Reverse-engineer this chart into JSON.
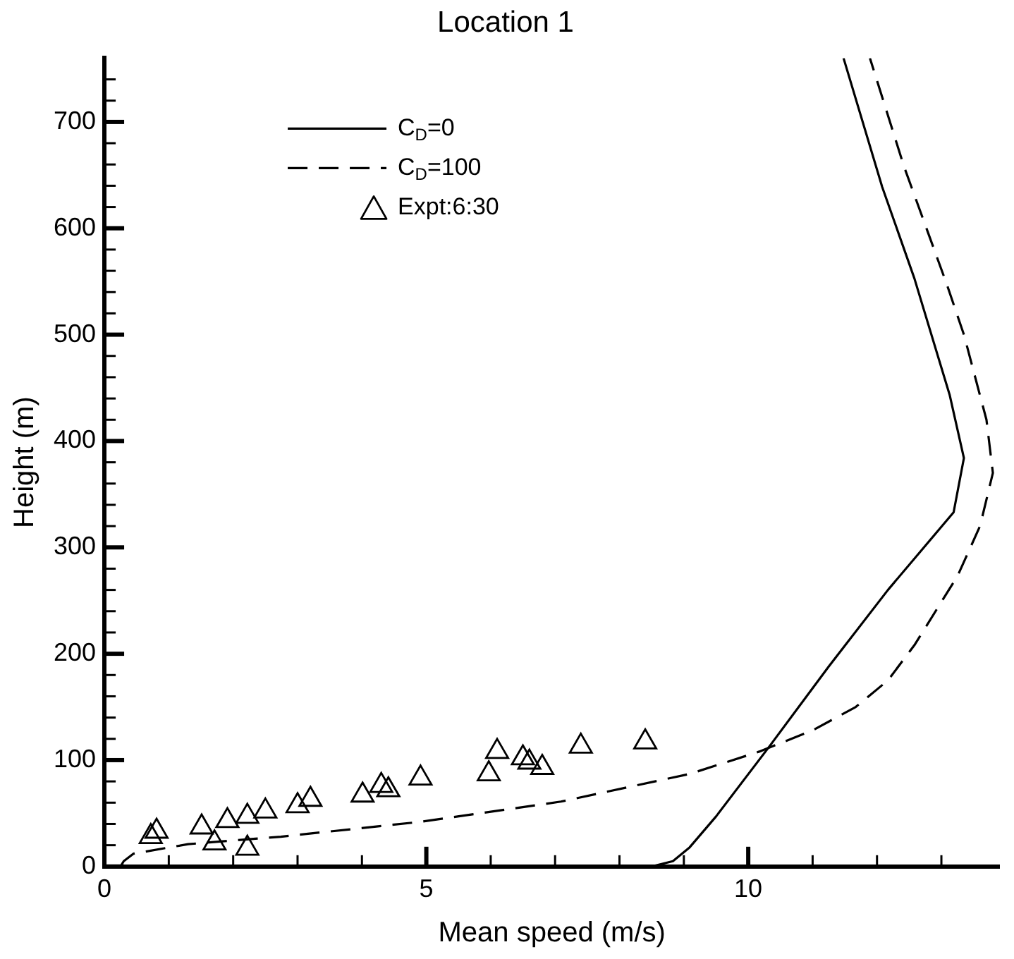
{
  "chart_data": {
    "type": "line",
    "title": "Location 1",
    "xlabel": "Mean speed (m/s)",
    "ylabel": "Height (m)",
    "xlim": [
      0,
      13.9
    ],
    "ylim": [
      0,
      760
    ],
    "xticks": [
      0,
      {
        "value": 1,
        "label": null
      },
      {
        "value": 2,
        "label": null
      },
      {
        "value": 3,
        "label": null
      },
      {
        "value": 4,
        "label": null
      },
      5,
      {
        "value": 6,
        "label": null
      },
      {
        "value": 7,
        "label": null
      },
      {
        "value": 8,
        "label": null
      },
      {
        "value": 9,
        "label": null
      },
      10,
      {
        "value": 11,
        "label": null
      },
      {
        "value": 12,
        "label": null
      },
      {
        "value": 13,
        "label": null
      }
    ],
    "yticks": [
      0,
      {
        "value": 20,
        "label": null
      },
      {
        "value": 40,
        "label": null
      },
      {
        "value": 60,
        "label": null
      },
      {
        "value": 80,
        "label": null
      },
      100,
      {
        "value": 120,
        "label": null
      },
      {
        "value": 140,
        "label": null
      },
      {
        "value": 160,
        "label": null
      },
      {
        "value": 180,
        "label": null
      },
      200,
      {
        "value": 220,
        "label": null
      },
      {
        "value": 240,
        "label": null
      },
      {
        "value": 260,
        "label": null
      },
      {
        "value": 280,
        "label": null
      },
      300,
      {
        "value": 320,
        "label": null
      },
      {
        "value": 340,
        "label": null
      },
      {
        "value": 360,
        "label": null
      },
      {
        "value": 380,
        "label": null
      },
      400,
      {
        "value": 420,
        "label": null
      },
      {
        "value": 440,
        "label": null
      },
      {
        "value": 460,
        "label": null
      },
      {
        "value": 480,
        "label": null
      },
      500,
      {
        "value": 520,
        "label": null
      },
      {
        "value": 540,
        "label": null
      },
      {
        "value": 560,
        "label": null
      },
      {
        "value": 580,
        "label": null
      },
      600,
      {
        "value": 620,
        "label": null
      },
      {
        "value": 640,
        "label": null
      },
      {
        "value": 660,
        "label": null
      },
      {
        "value": 680,
        "label": null
      },
      700,
      {
        "value": 720,
        "label": null
      },
      {
        "value": 740,
        "label": null
      }
    ],
    "grid": false,
    "legend": "top left",
    "series": [
      {
        "name": "C$_{D}$=0",
        "type": "line",
        "line_style": "solid",
        "marker": "none",
        "color": "#000000",
        "x": [
          8.5,
          8.83,
          9.09,
          9.5,
          10.33,
          11.25,
          12.17,
          13.19,
          13.35,
          13.13,
          12.58,
          12.08,
          11.48
        ],
        "values": [
          0,
          5,
          18,
          47,
          113,
          188,
          260,
          333,
          384,
          443,
          553,
          639,
          760
        ]
      },
      {
        "name": "C$_{D}$=100",
        "type": "line",
        "line_style": "dashed",
        "marker": "none",
        "color": "#000000",
        "x": [
          0.25,
          0.3,
          0.45,
          1.3,
          2.74,
          4.91,
          7.09,
          9.09,
          10.17,
          11.0,
          11.67,
          12.17,
          12.58,
          13.25,
          13.6,
          13.8,
          13.7,
          13.35,
          13.08,
          12.42,
          11.89
        ],
        "values": [
          0,
          5,
          12,
          21,
          28,
          42,
          61,
          87,
          108,
          128,
          150,
          175,
          208,
          273,
          320,
          370,
          420,
          500,
          548,
          658,
          760
        ]
      },
      {
        "name": "Expt:6:30",
        "type": "scatter",
        "marker": "triangle",
        "color": "#000000",
        "x": [
          0.72,
          0.81,
          1.51,
          1.71,
          1.91,
          2.22,
          2.22,
          2.5,
          3.0,
          3.2,
          4.01,
          4.3,
          4.41,
          4.91,
          5.97,
          6.1,
          6.5,
          6.6,
          6.8,
          7.4,
          8.4
        ],
        "values": [
          28,
          33,
          37,
          22,
          43,
          47,
          17,
          52,
          57,
          63,
          67,
          76,
          72,
          83,
          87,
          108,
          102,
          98,
          93,
          113,
          117
        ]
      }
    ]
  }
}
